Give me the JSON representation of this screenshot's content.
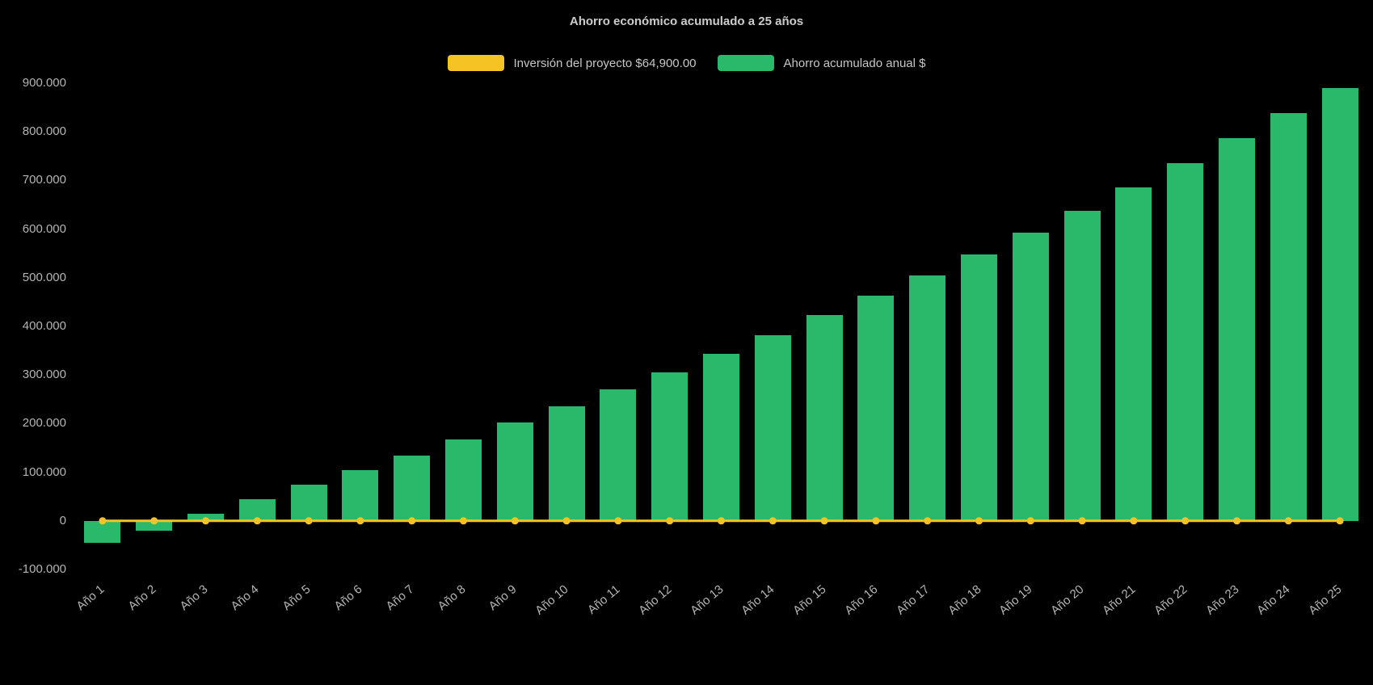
{
  "chart_data": {
    "type": "bar",
    "title": "Ahorro económico acumulado a 25 años",
    "categories": [
      "Año 1",
      "Año 2",
      "Año 3",
      "Año 4",
      "Año 5",
      "Año 6",
      "Año 7",
      "Año 8",
      "Año 9",
      "Año 10",
      "Año 11",
      "Año 12",
      "Año 13",
      "Año 14",
      "Año 15",
      "Año 16",
      "Año 17",
      "Año 18",
      "Año 19",
      "Año 20",
      "Año 21",
      "Año 22",
      "Año 23",
      "Año 24",
      "Año 25"
    ],
    "series": [
      {
        "name": "Ahorro acumulado anual $",
        "type": "bar",
        "color": "#2ab96a",
        "values": [
          -45000,
          -20000,
          15000,
          45000,
          75000,
          105000,
          135000,
          168000,
          202000,
          235000,
          270000,
          306000,
          343000,
          382000,
          423000,
          463000,
          505000,
          548000,
          593000,
          638000,
          686000,
          736000,
          787000,
          838000,
          890000
        ]
      },
      {
        "name": "Inversión del proyecto $64,900.00",
        "type": "line",
        "color": "#f6c324",
        "constant_value": 0,
        "marker": "circle"
      }
    ],
    "ylim": [
      -100000,
      900000
    ],
    "y_ticks": [
      {
        "value": 900000,
        "label": "900.000"
      },
      {
        "value": 800000,
        "label": "800.000"
      },
      {
        "value": 700000,
        "label": "700.000"
      },
      {
        "value": 600000,
        "label": "600.000"
      },
      {
        "value": 500000,
        "label": "500.000"
      },
      {
        "value": 400000,
        "label": "400.000"
      },
      {
        "value": 300000,
        "label": "300.000"
      },
      {
        "value": 200000,
        "label": "200.000"
      },
      {
        "value": 100000,
        "label": "100.000"
      },
      {
        "value": 0,
        "label": "0"
      },
      {
        "value": -100000,
        "label": "-100.000"
      }
    ],
    "grid": false,
    "legend_position": "top",
    "colors": {
      "background": "#000000",
      "axis_text": "#b5b5b5",
      "title_text": "#cccccc",
      "bar": "#2ab96a",
      "line": "#f6c324"
    }
  },
  "legend": {
    "items": [
      {
        "label": "Inversión del proyecto $64,900.00",
        "color": "#f6c324"
      },
      {
        "label": "Ahorro acumulado anual $",
        "color": "#2ab96a"
      }
    ]
  }
}
